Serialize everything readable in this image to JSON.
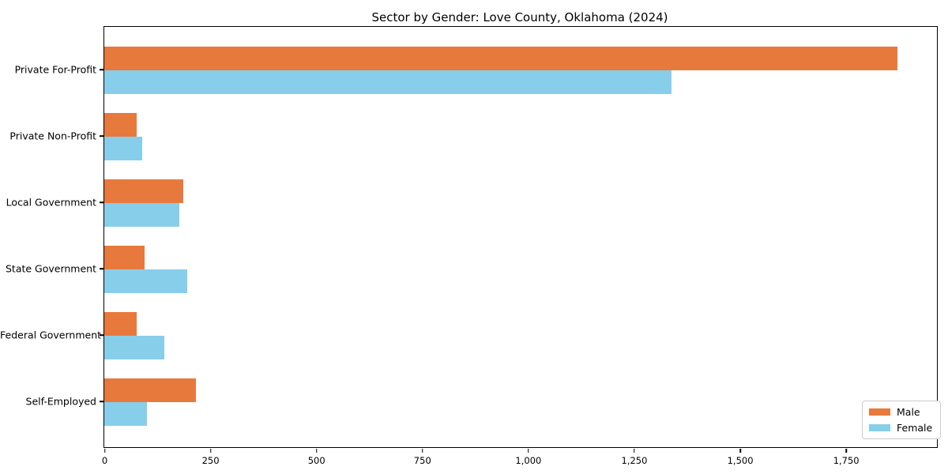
{
  "chart_data": {
    "type": "bar",
    "orientation": "horizontal",
    "title": "Sector by Gender: Love County, Oklahoma (2024)",
    "categories": [
      "Private For-Profit",
      "Private Non-Profit",
      "Local Government",
      "State Government",
      "Federal Government",
      "Self-Employed"
    ],
    "series": [
      {
        "name": "Male",
        "color": "#e8793d",
        "values": [
          1872,
          76,
          186,
          95,
          76,
          216
        ]
      },
      {
        "name": "Female",
        "color": "#87ceeb",
        "values": [
          1338,
          90,
          177,
          196,
          142,
          101
        ]
      }
    ],
    "xlabel": "",
    "ylabel": "",
    "xlim": [
      0,
      1965
    ],
    "xticks": [
      0,
      250,
      500,
      750,
      1000,
      1250,
      1500,
      1750
    ],
    "xtick_labels": [
      "0",
      "250",
      "500",
      "750",
      "1,000",
      "1,250",
      "1,500",
      "1,750"
    ],
    "grid": false,
    "legend_position": "lower right",
    "legend": {
      "entries": [
        {
          "label": "Male",
          "color": "#e8793d"
        },
        {
          "label": "Female",
          "color": "#87ceeb"
        }
      ]
    }
  }
}
